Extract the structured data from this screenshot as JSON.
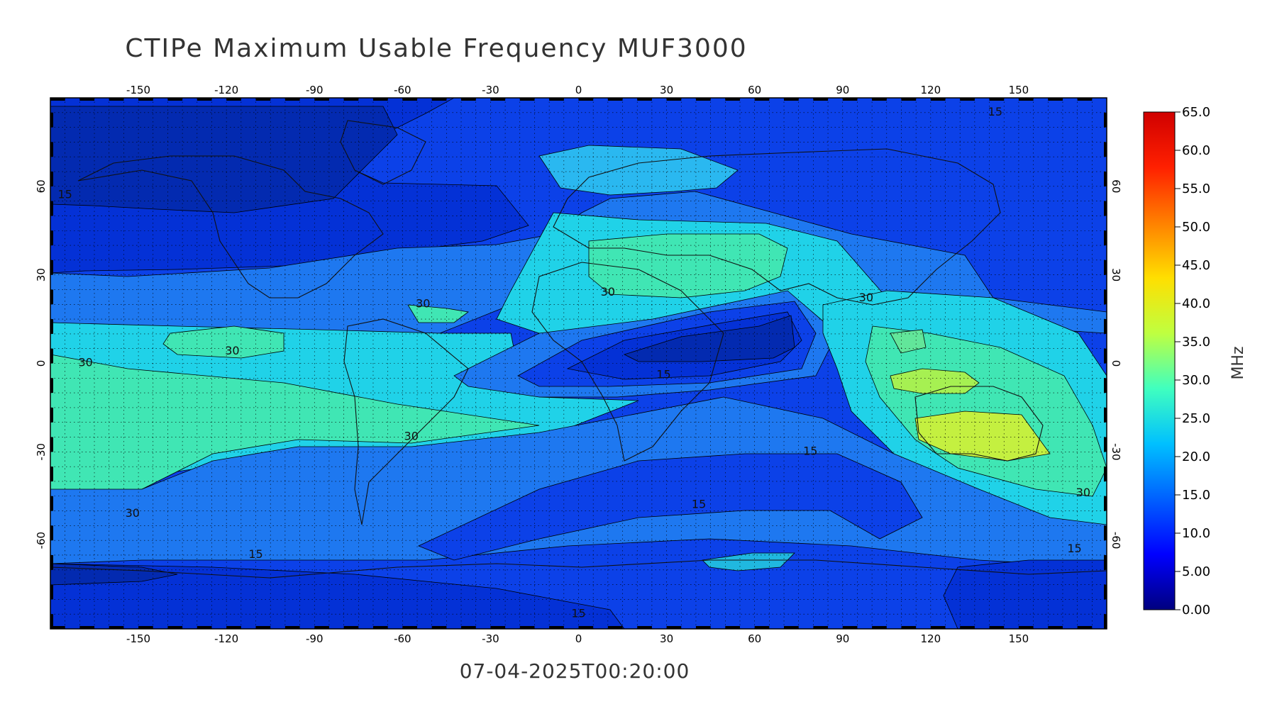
{
  "title": "CTIPe Maximum Usable Frequency MUF3000",
  "timestamp": "07-04-2025T00:20:00",
  "map": {
    "lon_range": [
      -180,
      180
    ],
    "lat_range": [
      -90,
      90
    ],
    "lon_ticks": [
      "-150",
      "-120",
      "-90",
      "-60",
      "-30",
      "0",
      "30",
      "60",
      "90",
      "120",
      "150"
    ],
    "lat_ticks": [
      "60",
      "30",
      "0",
      "-30",
      "-60"
    ],
    "graticule_step_deg": 5,
    "contour_labels": [
      {
        "text": "15",
        "lon": 142,
        "lat": 84
      },
      {
        "text": "15",
        "lon": -175,
        "lat": 56
      },
      {
        "text": "30",
        "lon": 10,
        "lat": 23
      },
      {
        "text": "30",
        "lon": 98,
        "lat": 21
      },
      {
        "text": "30",
        "lon": -53,
        "lat": 19
      },
      {
        "text": "30",
        "lon": -118,
        "lat": 3
      },
      {
        "text": "30",
        "lon": -168,
        "lat": -1
      },
      {
        "text": "30",
        "lon": -57,
        "lat": -26
      },
      {
        "text": "30",
        "lon": -152,
        "lat": -52
      },
      {
        "text": "30",
        "lon": 172,
        "lat": -45
      },
      {
        "text": "15",
        "lon": 29,
        "lat": -5
      },
      {
        "text": "15",
        "lon": 79,
        "lat": -31
      },
      {
        "text": "15",
        "lon": 41,
        "lat": -49
      },
      {
        "text": "15",
        "lon": -110,
        "lat": -66
      },
      {
        "text": "15",
        "lon": 169,
        "lat": -64
      },
      {
        "text": "15",
        "lon": 0,
        "lat": -86
      }
    ]
  },
  "colorbar": {
    "unit": "MHz",
    "ticks": [
      "65.0",
      "60.0",
      "55.0",
      "50.0",
      "45.0",
      "40.0",
      "35.0",
      "30.0",
      "25.0",
      "20.0",
      "15.0",
      "10.0",
      "5.00",
      "0.00"
    ],
    "min": 0,
    "max": 65,
    "colors": [
      "#00007f",
      "#0000ff",
      "#0060ff",
      "#00c0ff",
      "#40ffbf",
      "#bfff40",
      "#ffdf00",
      "#ff8000",
      "#ff2000",
      "#d00000"
    ]
  }
}
